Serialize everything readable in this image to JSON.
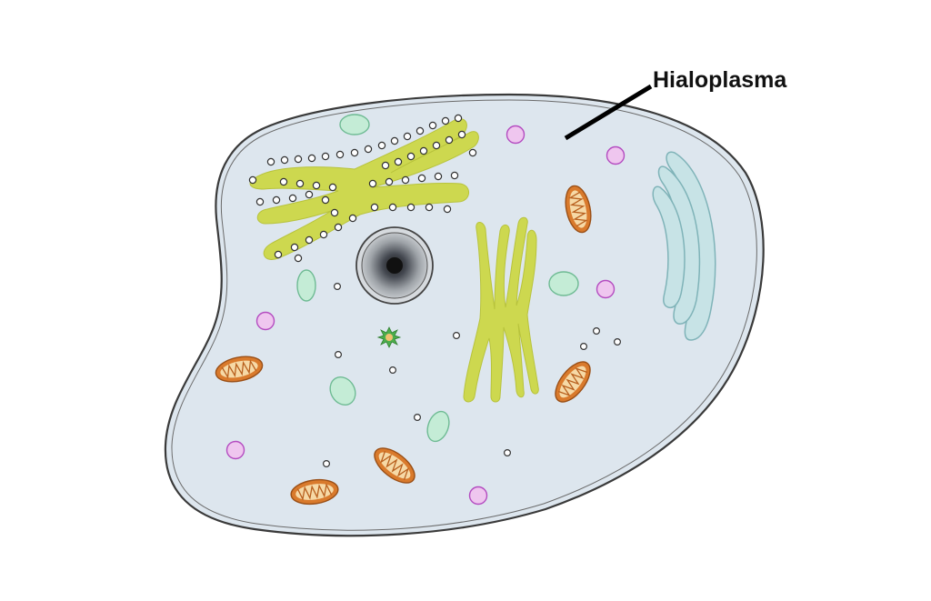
{
  "diagram": {
    "label": "Hialoplasma"
  },
  "colors": {
    "cytoplasm": "#dde6ee",
    "membrane": "#3a3a3a",
    "endoplasmic_reticulum": "#cdd84f",
    "ribosome_outline": "#333333",
    "vesicle_purple_fill": "#efc6ef",
    "vesicle_purple_stroke": "#b44cc0",
    "vesicle_green_fill": "#c4ecd6",
    "vesicle_green_stroke": "#6fbb94",
    "mitochondrion_fill": "#d97a2c",
    "mitochondrion_inner": "#f6d9a6",
    "golgi_fill": "#c7e3e6",
    "golgi_stroke": "#7fb3b8",
    "nucleus_dark": "#111111",
    "nucleus_gray": "#a7abb0",
    "leader_line": "#000000"
  }
}
